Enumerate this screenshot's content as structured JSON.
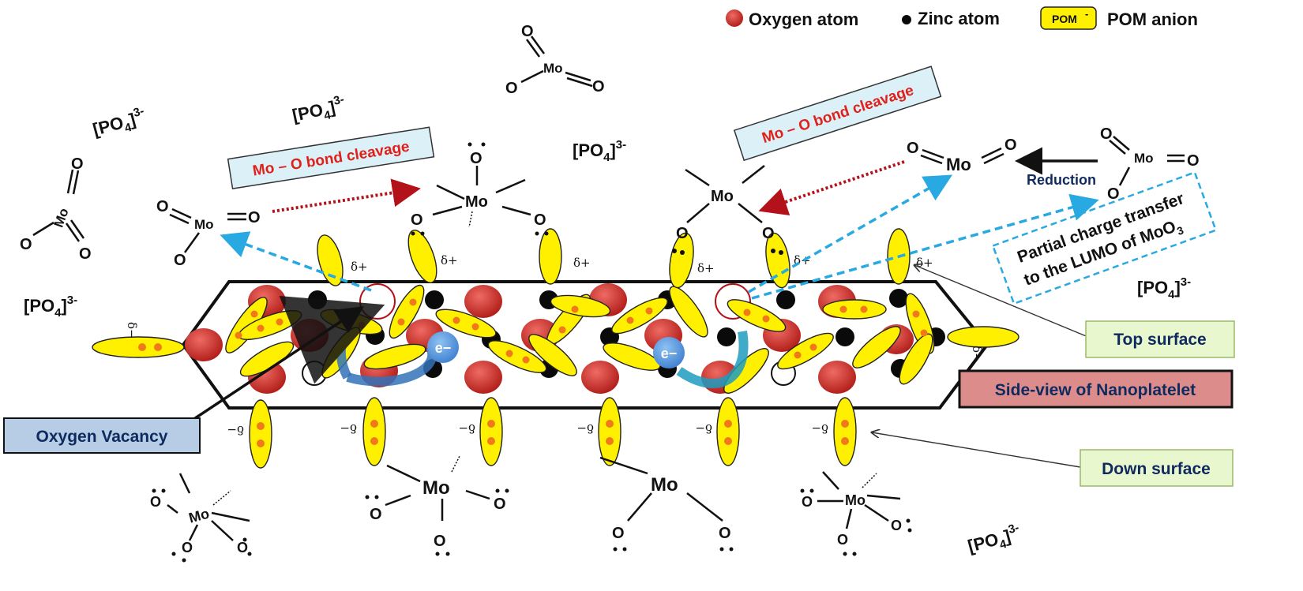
{
  "legend": {
    "oxygen": "Oxygen atom",
    "zinc": "Zinc atom",
    "pom_symbol": "POM",
    "pom_superscript": "-",
    "pom": "POM anion"
  },
  "labels": {
    "mo_o_cleavage_left": "Mo – O bond cleavage",
    "mo_o_cleavage_right": "Mo – O bond cleavage",
    "reduction": "Reduction",
    "charge_transfer_line1": "Partial charge transfer",
    "charge_transfer_line2": "to the LUMO of MoO",
    "charge_transfer_sub": "3",
    "top_surface": "Top surface",
    "down_surface": "Down surface",
    "nanoplatelet": "Side-view of Nanoplatelet",
    "oxygen_vacancy": "Oxygen Vacancy"
  },
  "chem": {
    "mo": "Mo",
    "o": "O",
    "po4": "[PO",
    "po4_sub": "4",
    "po4_close": "]",
    "po4_charge": "3-",
    "electron": "e−",
    "delta_plus": "δ+",
    "delta_minus": "δ−"
  },
  "colors": {
    "oxygen": "#c8302c",
    "zinc": "#0a0a0a",
    "pom": "#fff000",
    "pom_dot": "#f07a1a",
    "red_arrow": "#b4121a",
    "blue_arrow": "#29a9e1",
    "box_green": "#e9f7cf",
    "box_pink": "#dd8c8c",
    "box_blue": "#b7cde6",
    "box_cyan": "#dcf1f7"
  }
}
